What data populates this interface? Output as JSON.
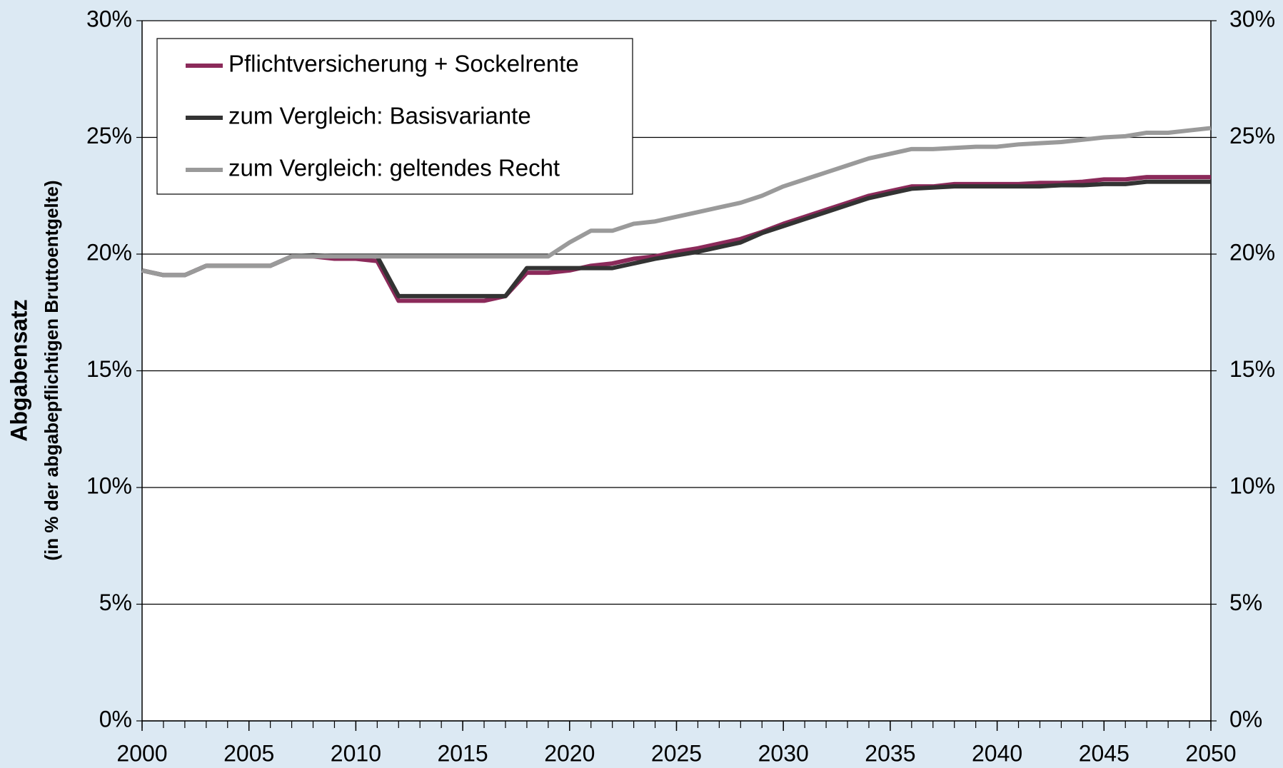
{
  "chart_data": {
    "type": "line",
    "ylabel": "Abgabensatz",
    "ylabel_sub": "(in % der abgabepflichtigen Bruttoentgelte)",
    "x": [
      2000,
      2001,
      2002,
      2003,
      2004,
      2005,
      2006,
      2007,
      2008,
      2009,
      2010,
      2011,
      2012,
      2013,
      2014,
      2015,
      2016,
      2017,
      2018,
      2019,
      2020,
      2021,
      2022,
      2023,
      2024,
      2025,
      2026,
      2027,
      2028,
      2029,
      2030,
      2031,
      2032,
      2033,
      2034,
      2035,
      2036,
      2037,
      2038,
      2039,
      2040,
      2041,
      2042,
      2043,
      2044,
      2045,
      2046,
      2047,
      2048,
      2049,
      2050
    ],
    "xlim": [
      2000,
      2050
    ],
    "xticks": [
      2000,
      2005,
      2010,
      2015,
      2020,
      2025,
      2030,
      2035,
      2040,
      2045,
      2050
    ],
    "ylim": [
      0,
      30
    ],
    "yticks": [
      {
        "value": 0,
        "label": "0%"
      },
      {
        "value": 5,
        "label": "5%"
      },
      {
        "value": 10,
        "label": "10%"
      },
      {
        "value": 15,
        "label": "15%"
      },
      {
        "value": 20,
        "label": "20%"
      },
      {
        "value": 25,
        "label": "25%"
      },
      {
        "value": 30,
        "label": "30%"
      }
    ],
    "grid": true,
    "legend": "top-left",
    "series": [
      {
        "name": "Pflichtversicherung + Sockelrente",
        "color": "#8b2a5a",
        "values": [
          19.3,
          19.1,
          19.1,
          19.5,
          19.5,
          19.5,
          19.5,
          19.9,
          19.9,
          19.8,
          19.8,
          19.7,
          18.0,
          18.0,
          18.0,
          18.0,
          18.0,
          18.2,
          19.2,
          19.2,
          19.3,
          19.5,
          19.6,
          19.8,
          19.9,
          20.1,
          20.25,
          20.45,
          20.65,
          20.95,
          21.3,
          21.6,
          21.9,
          22.2,
          22.5,
          22.7,
          22.9,
          22.9,
          23.0,
          23.0,
          23.0,
          23.0,
          23.05,
          23.05,
          23.1,
          23.2,
          23.2,
          23.3,
          23.3,
          23.3,
          23.3
        ]
      },
      {
        "name": "zum Vergleich: Basisvariante",
        "color": "#333333",
        "values": [
          19.3,
          19.1,
          19.1,
          19.5,
          19.5,
          19.5,
          19.5,
          19.9,
          19.95,
          19.9,
          19.9,
          19.9,
          18.2,
          18.2,
          18.2,
          18.2,
          18.2,
          18.2,
          19.4,
          19.4,
          19.4,
          19.4,
          19.4,
          19.6,
          19.8,
          19.95,
          20.1,
          20.3,
          20.5,
          20.9,
          21.2,
          21.5,
          21.8,
          22.1,
          22.4,
          22.6,
          22.8,
          22.85,
          22.9,
          22.9,
          22.9,
          22.9,
          22.9,
          22.95,
          22.95,
          23.0,
          23.0,
          23.1,
          23.1,
          23.1,
          23.1
        ]
      },
      {
        "name": "zum Vergleich: geltendes Recht",
        "color": "#9a9a9a",
        "values": [
          19.3,
          19.1,
          19.1,
          19.5,
          19.5,
          19.5,
          19.5,
          19.9,
          19.9,
          19.9,
          19.9,
          19.9,
          19.9,
          19.9,
          19.9,
          19.9,
          19.9,
          19.9,
          19.9,
          19.9,
          20.5,
          21.0,
          21.0,
          21.3,
          21.4,
          21.6,
          21.8,
          22.0,
          22.2,
          22.5,
          22.9,
          23.2,
          23.5,
          23.8,
          24.1,
          24.3,
          24.5,
          24.5,
          24.55,
          24.6,
          24.6,
          24.7,
          24.75,
          24.8,
          24.9,
          25.0,
          25.05,
          25.2,
          25.2,
          25.3,
          25.4
        ]
      }
    ]
  }
}
